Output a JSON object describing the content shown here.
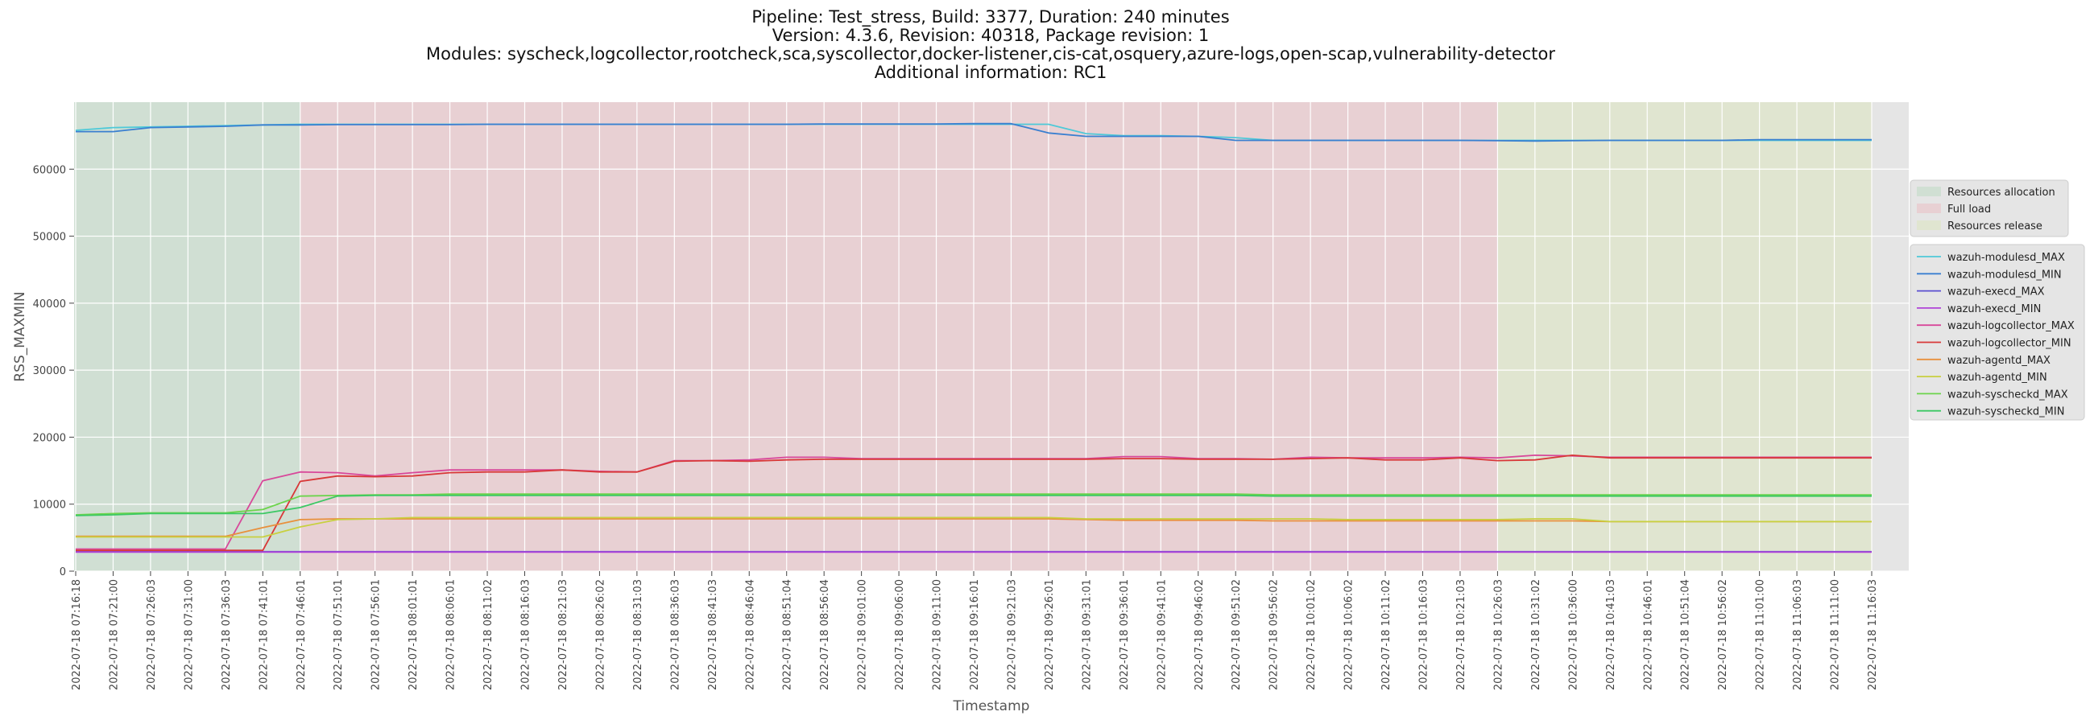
{
  "chart_data": {
    "type": "line",
    "title_lines": [
      "Pipeline: Test_stress, Build: 3377, Duration: 240 minutes",
      "Version: 4.3.6, Revision: 40318, Package revision: 1",
      "Modules: syscheck,logcollector,rootcheck,sca,syscollector,docker-listener,cis-cat,osquery,azure-logs,open-scap,vulnerability-detector",
      "Additional information: RC1"
    ],
    "xlabel": "Timestamp",
    "ylabel": "RSS_MAXMIN",
    "ylim": [
      0,
      70000
    ],
    "yticks": [
      0,
      10000,
      20000,
      30000,
      40000,
      50000,
      60000
    ],
    "grid": true,
    "legend_position": "right",
    "x": [
      "2022-07-18 07:16:18",
      "2022-07-18 07:21:00",
      "2022-07-18 07:26:03",
      "2022-07-18 07:31:00",
      "2022-07-18 07:36:03",
      "2022-07-18 07:41:01",
      "2022-07-18 07:46:01",
      "2022-07-18 07:51:01",
      "2022-07-18 07:56:01",
      "2022-07-18 08:01:01",
      "2022-07-18 08:06:01",
      "2022-07-18 08:11:02",
      "2022-07-18 08:16:03",
      "2022-07-18 08:21:03",
      "2022-07-18 08:26:02",
      "2022-07-18 08:31:03",
      "2022-07-18 08:36:03",
      "2022-07-18 08:41:03",
      "2022-07-18 08:46:04",
      "2022-07-18 08:51:04",
      "2022-07-18 08:56:04",
      "2022-07-18 09:01:00",
      "2022-07-18 09:06:00",
      "2022-07-18 09:11:00",
      "2022-07-18 09:16:01",
      "2022-07-18 09:21:03",
      "2022-07-18 09:26:01",
      "2022-07-18 09:31:01",
      "2022-07-18 09:36:01",
      "2022-07-18 09:41:01",
      "2022-07-18 09:46:02",
      "2022-07-18 09:51:02",
      "2022-07-18 09:56:02",
      "2022-07-18 10:01:02",
      "2022-07-18 10:06:02",
      "2022-07-18 10:11:02",
      "2022-07-18 10:16:03",
      "2022-07-18 10:21:03",
      "2022-07-18 10:26:03",
      "2022-07-18 10:31:02",
      "2022-07-18 10:36:00",
      "2022-07-18 10:41:03",
      "2022-07-18 10:46:01",
      "2022-07-18 10:51:04",
      "2022-07-18 10:56:02",
      "2022-07-18 11:01:00",
      "2022-07-18 11:06:03",
      "2022-07-18 11:11:00",
      "2022-07-18 11:16:03"
    ],
    "phases": [
      {
        "name": "Resources allocation",
        "start": 0,
        "end": 6,
        "color": "#c8dccc"
      },
      {
        "name": "Full load",
        "start": 6,
        "end": 38,
        "color": "#e8c8cc"
      },
      {
        "name": "Resources release",
        "start": 38,
        "end": 48,
        "color": "#dde4c8"
      }
    ],
    "series": [
      {
        "name": "wazuh-modulesd_MAX",
        "color": "#4ec9d8",
        "values": [
          65800,
          66200,
          66300,
          66400,
          66500,
          66600,
          66700,
          66700,
          66700,
          66700,
          66700,
          66700,
          66700,
          66700,
          66700,
          66700,
          66700,
          66700,
          66700,
          66700,
          66700,
          66700,
          66700,
          66700,
          66700,
          66700,
          66700,
          65300,
          65000,
          65000,
          64900,
          64700,
          64300,
          64300,
          64300,
          64300,
          64300,
          64300,
          64300,
          64300,
          64300,
          64300,
          64300,
          64300,
          64300,
          64300,
          64300,
          64300,
          64300
        ]
      },
      {
        "name": "wazuh-modulesd_MIN",
        "color": "#3a7fd0",
        "values": [
          65600,
          65600,
          66200,
          66300,
          66400,
          66600,
          66600,
          66650,
          66650,
          66650,
          66650,
          66700,
          66700,
          66700,
          66700,
          66700,
          66700,
          66700,
          66700,
          66700,
          66750,
          66750,
          66750,
          66750,
          66800,
          66800,
          65400,
          64900,
          64900,
          64900,
          64900,
          64300,
          64300,
          64300,
          64300,
          64300,
          64300,
          64300,
          64250,
          64200,
          64250,
          64300,
          64300,
          64300,
          64300,
          64400,
          64400,
          64400,
          64400
        ]
      },
      {
        "name": "wazuh-execd_MAX",
        "color": "#5c4fd0",
        "values": [
          2900,
          2900,
          2900,
          2900,
          2900,
          2900,
          2900,
          2900,
          2900,
          2900,
          2900,
          2900,
          2900,
          2900,
          2900,
          2900,
          2900,
          2900,
          2900,
          2900,
          2900,
          2900,
          2900,
          2900,
          2900,
          2900,
          2900,
          2900,
          2900,
          2900,
          2900,
          2900,
          2900,
          2900,
          2900,
          2900,
          2900,
          2900,
          2900,
          2900,
          2900,
          2900,
          2900,
          2900,
          2900,
          2900,
          2900,
          2900,
          2900
        ]
      },
      {
        "name": "wazuh-execd_MIN",
        "color": "#b044d8",
        "values": [
          2850,
          2850,
          2850,
          2850,
          2850,
          2850,
          2850,
          2850,
          2850,
          2850,
          2850,
          2850,
          2850,
          2850,
          2850,
          2850,
          2850,
          2850,
          2850,
          2850,
          2850,
          2850,
          2850,
          2850,
          2850,
          2850,
          2850,
          2850,
          2850,
          2850,
          2850,
          2850,
          2850,
          2850,
          2850,
          2850,
          2850,
          2850,
          2850,
          2850,
          2850,
          2850,
          2850,
          2850,
          2850,
          2850,
          2850,
          2850,
          2850
        ]
      },
      {
        "name": "wazuh-logcollector_MAX",
        "color": "#d8489a",
        "values": [
          3300,
          3300,
          3300,
          3300,
          3300,
          13500,
          14800,
          14700,
          14200,
          14700,
          15100,
          15100,
          15100,
          15100,
          14900,
          14800,
          16500,
          16500,
          16600,
          17000,
          17000,
          16800,
          16800,
          16800,
          16800,
          16800,
          16800,
          16800,
          17100,
          17100,
          16800,
          16800,
          16700,
          17000,
          16900,
          16900,
          16900,
          17000,
          16900,
          17300,
          17200,
          17000,
          17000,
          17000,
          17000,
          17000,
          17000,
          17000,
          17000
        ]
      },
      {
        "name": "wazuh-logcollector_MIN",
        "color": "#d83838",
        "values": [
          3100,
          3100,
          3100,
          3100,
          3100,
          3100,
          13400,
          14200,
          14100,
          14200,
          14700,
          14800,
          14800,
          15100,
          14800,
          14800,
          16400,
          16500,
          16400,
          16600,
          16700,
          16700,
          16700,
          16700,
          16700,
          16700,
          16700,
          16700,
          16800,
          16800,
          16700,
          16700,
          16700,
          16800,
          16900,
          16600,
          16600,
          16900,
          16500,
          16600,
          17300,
          16900,
          16900,
          16900,
          16900,
          16900,
          16900,
          16900,
          16900
        ]
      },
      {
        "name": "wazuh-agentd_MAX",
        "color": "#e8903c",
        "values": [
          5200,
          5200,
          5200,
          5200,
          5200,
          6500,
          7700,
          7800,
          7800,
          7800,
          7800,
          7800,
          7800,
          7800,
          7800,
          7800,
          7800,
          7800,
          7800,
          7800,
          7800,
          7800,
          7800,
          7800,
          7800,
          7800,
          7800,
          7700,
          7600,
          7600,
          7600,
          7600,
          7500,
          7500,
          7500,
          7500,
          7500,
          7500,
          7500,
          7500,
          7500,
          7400,
          7400,
          7400,
          7400,
          7400,
          7400,
          7400,
          7400
        ]
      },
      {
        "name": "wazuh-agentd_MIN",
        "color": "#c8d040",
        "values": [
          5100,
          5100,
          5100,
          5100,
          5100,
          5100,
          6600,
          7700,
          7800,
          8000,
          8000,
          8000,
          8000,
          8000,
          8000,
          8000,
          8000,
          8000,
          8000,
          8000,
          8000,
          8000,
          8000,
          8000,
          8000,
          8000,
          8000,
          7800,
          7800,
          7800,
          7800,
          7800,
          7800,
          7800,
          7700,
          7700,
          7700,
          7700,
          7700,
          7800,
          7800,
          7400,
          7400,
          7400,
          7400,
          7400,
          7400,
          7400,
          7400
        ]
      },
      {
        "name": "wazuh-syscheckd_MAX",
        "color": "#6cd44c",
        "values": [
          8400,
          8600,
          8700,
          8700,
          8700,
          9200,
          11200,
          11300,
          11400,
          11400,
          11500,
          11500,
          11500,
          11500,
          11500,
          11500,
          11500,
          11500,
          11500,
          11500,
          11500,
          11500,
          11500,
          11500,
          11500,
          11500,
          11500,
          11500,
          11500,
          11500,
          11500,
          11500,
          11400,
          11400,
          11400,
          11400,
          11400,
          11400,
          11400,
          11400,
          11400,
          11400,
          11400,
          11400,
          11400,
          11400,
          11400,
          11400,
          11400
        ]
      },
      {
        "name": "wazuh-syscheckd_MIN",
        "color": "#3cc864",
        "values": [
          8300,
          8400,
          8600,
          8600,
          8600,
          8600,
          9500,
          11200,
          11300,
          11300,
          11300,
          11300,
          11300,
          11300,
          11300,
          11300,
          11300,
          11300,
          11300,
          11300,
          11300,
          11300,
          11300,
          11300,
          11300,
          11300,
          11300,
          11300,
          11300,
          11300,
          11300,
          11300,
          11200,
          11200,
          11200,
          11200,
          11200,
          11200,
          11200,
          11200,
          11200,
          11200,
          11200,
          11200,
          11200,
          11200,
          11200,
          11200,
          11200
        ]
      }
    ]
  }
}
